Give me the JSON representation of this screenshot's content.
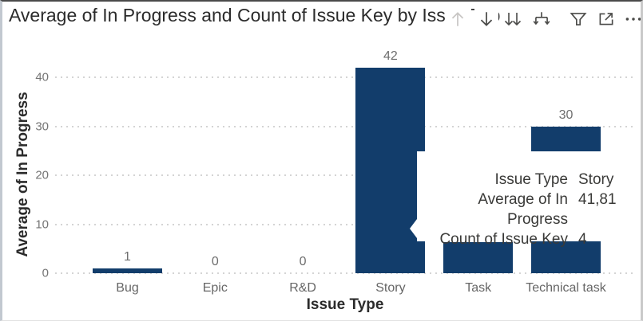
{
  "header": {
    "title": "Average of In Progress and Count of Issue Key by Issue Type",
    "icons": [
      {
        "name": "drill-up-icon",
        "meaning": "drill up",
        "disabled": true
      },
      {
        "name": "drill-down-icon",
        "meaning": "drill down",
        "disabled": false
      },
      {
        "name": "expand-all-down-icon",
        "meaning": "expand all down one level",
        "disabled": false
      },
      {
        "name": "go-to-next-level-icon",
        "meaning": "go to next level in the hierarchy",
        "disabled": false
      },
      {
        "name": "filter-icon",
        "meaning": "filters",
        "disabled": false
      },
      {
        "name": "focus-mode-icon",
        "meaning": "focus mode",
        "disabled": false
      },
      {
        "name": "more-options-icon",
        "meaning": "more options",
        "disabled": false
      }
    ]
  },
  "chart_data": {
    "type": "bar",
    "title": "Average of In Progress and Count of Issue Key by Issue Type",
    "xlabel": "Issue Type",
    "ylabel": "Average of In Progress",
    "categories": [
      "Bug",
      "Epic",
      "R&D",
      "Story",
      "Task",
      "Technical task"
    ],
    "values": [
      1,
      0,
      0,
      42,
      6.3,
      30
    ],
    "data_labels": [
      "1",
      "0",
      "0",
      "42",
      "",
      "30"
    ],
    "ylim": [
      0,
      42
    ],
    "yticks": [
      0,
      10,
      20,
      30,
      40
    ],
    "grid": "dotted horizontal gridlines",
    "legend": "none"
  },
  "tooltip": {
    "rows": [
      {
        "label": "Issue Type",
        "value": "Story"
      },
      {
        "label": "Average of In Progress",
        "value": "41,81"
      },
      {
        "label": "Count of Issue Key",
        "value": "4"
      }
    ]
  },
  "colors": {
    "bar_fill": "#123d6b",
    "title_text": "#2b2b2b",
    "axis_title_text": "#2b2b2b",
    "tick_text": "#757575",
    "category_text": "#666666",
    "data_label_text": "#6e6e6e",
    "gridline": "#d4d4d4",
    "tooltip_bg": "#ffffff",
    "tooltip_text": "#3a3a38",
    "icon_color": "#4a4a48",
    "icon_disabled_color": "#c8c6c4"
  }
}
